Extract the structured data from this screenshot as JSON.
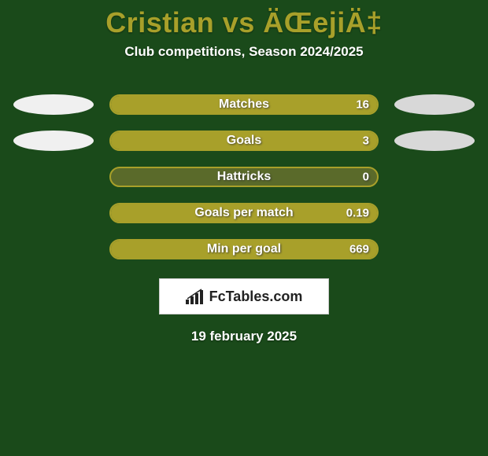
{
  "theme": {
    "background": "#1a4a1a",
    "title_color": "#a8a02a",
    "subtitle_color": "#ffffff",
    "bar_border": "#a8a02a",
    "bar_fill": "#a8a02a",
    "bar_track": "#5a6a2a",
    "ellipse_left": "#f0f0f0",
    "ellipse_right": "#d8d8d8",
    "logo_bg": "#ffffff",
    "logo_border": "#cccccc",
    "logo_text_color": "#222222",
    "date_color": "#ffffff"
  },
  "header": {
    "title": "Cristian vs ÄŒejiÄ‡",
    "subtitle": "Club competitions, Season 2024/2025"
  },
  "stats": [
    {
      "label": "Matches",
      "value": "16",
      "fill_pct": 100,
      "show_ellipses": true
    },
    {
      "label": "Goals",
      "value": "3",
      "fill_pct": 100,
      "show_ellipses": true
    },
    {
      "label": "Hattricks",
      "value": "0",
      "fill_pct": 0,
      "show_ellipses": false
    },
    {
      "label": "Goals per match",
      "value": "0.19",
      "fill_pct": 100,
      "show_ellipses": false
    },
    {
      "label": "Min per goal",
      "value": "669",
      "fill_pct": 100,
      "show_ellipses": false
    }
  ],
  "logo": {
    "text": "FcTables.com"
  },
  "date": "19 february 2025"
}
